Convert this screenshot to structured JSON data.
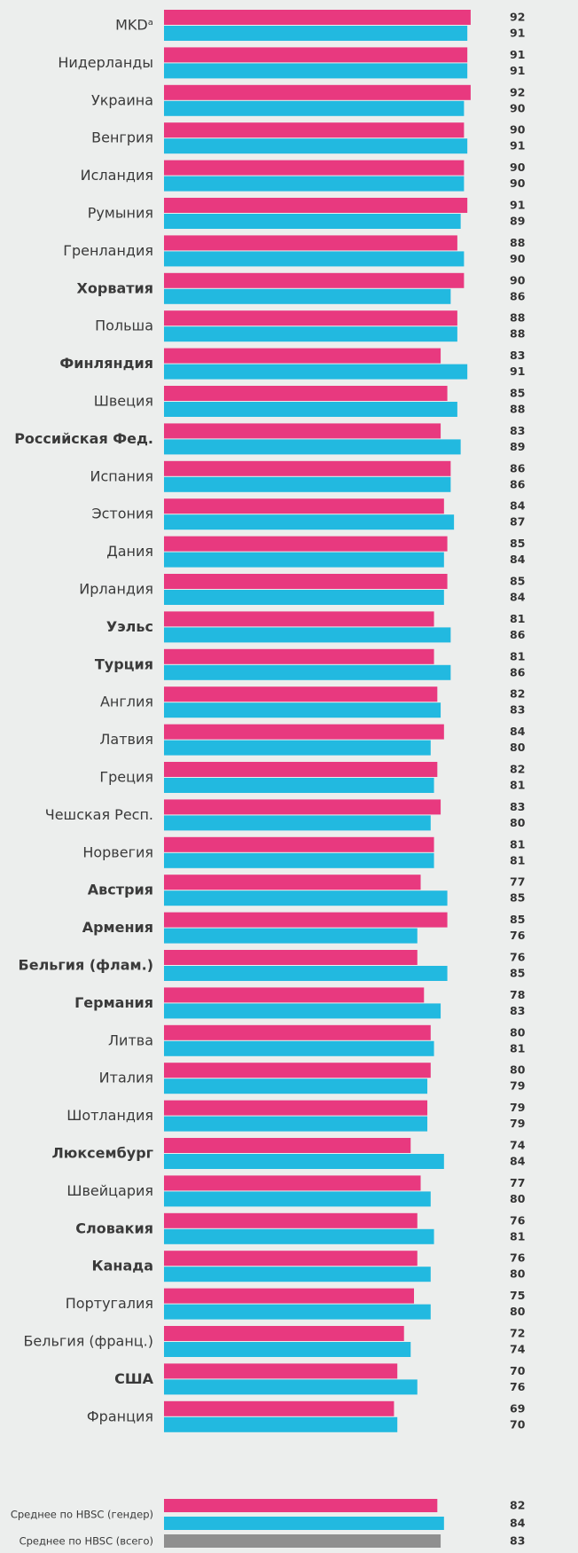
{
  "chart_data": [
    {
      "type": "hbar-grouped",
      "categories": [
        "MKDᵃ",
        "Нидерланды",
        "Украина",
        "Венгрия",
        "Исландия",
        "Румыния",
        "Гренландия",
        "Хорватия",
        "Польша",
        "Финляндия",
        "Швеция",
        "Российская Фед.",
        "Испания",
        "Эстония",
        "Дания",
        "Ирландия",
        "Уэльс",
        "Турция",
        "Англия",
        "Латвия",
        "Греция",
        "Чешская Респ.",
        "Норвегия",
        "Австрия",
        "Армения",
        "Бельгия (флам.)",
        "Германия",
        "Литва",
        "Италия",
        "Шотландия",
        "Люксембург",
        "Швейцария",
        "Словакия",
        "Канада",
        "Португалия",
        "Бельгия (франц.)",
        "США",
        "Франция"
      ],
      "bold": [
        false,
        false,
        false,
        false,
        false,
        false,
        false,
        true,
        false,
        true,
        false,
        true,
        false,
        false,
        false,
        false,
        true,
        true,
        false,
        false,
        false,
        false,
        false,
        true,
        true,
        true,
        true,
        false,
        false,
        false,
        true,
        false,
        true,
        true,
        false,
        false,
        true,
        false
      ],
      "series": [
        {
          "color": "#e8397f",
          "values": [
            92,
            91,
            92,
            90,
            90,
            91,
            88,
            90,
            88,
            83,
            85,
            83,
            86,
            84,
            85,
            85,
            81,
            81,
            82,
            84,
            82,
            83,
            81,
            77,
            85,
            76,
            78,
            80,
            80,
            79,
            74,
            77,
            76,
            76,
            75,
            72,
            70,
            69
          ]
        },
        {
          "color": "#22b9e0",
          "values": [
            91,
            91,
            90,
            91,
            90,
            89,
            90,
            86,
            88,
            91,
            88,
            89,
            86,
            87,
            84,
            84,
            86,
            86,
            83,
            80,
            81,
            80,
            81,
            85,
            76,
            85,
            83,
            81,
            79,
            79,
            84,
            80,
            81,
            80,
            80,
            74,
            76,
            70
          ]
        }
      ]
    },
    {
      "type": "hbar-summary",
      "categories": [
        "Среднее по HBSC (гендер)",
        "Среднее по HBSC (всего)"
      ],
      "series": [
        {
          "color": "#e8397f",
          "values": [
            82,
            null
          ]
        },
        {
          "color": "#22b9e0",
          "values": [
            84,
            null
          ]
        },
        {
          "color": "#8f8f8f",
          "values": [
            null,
            83
          ]
        }
      ]
    }
  ]
}
